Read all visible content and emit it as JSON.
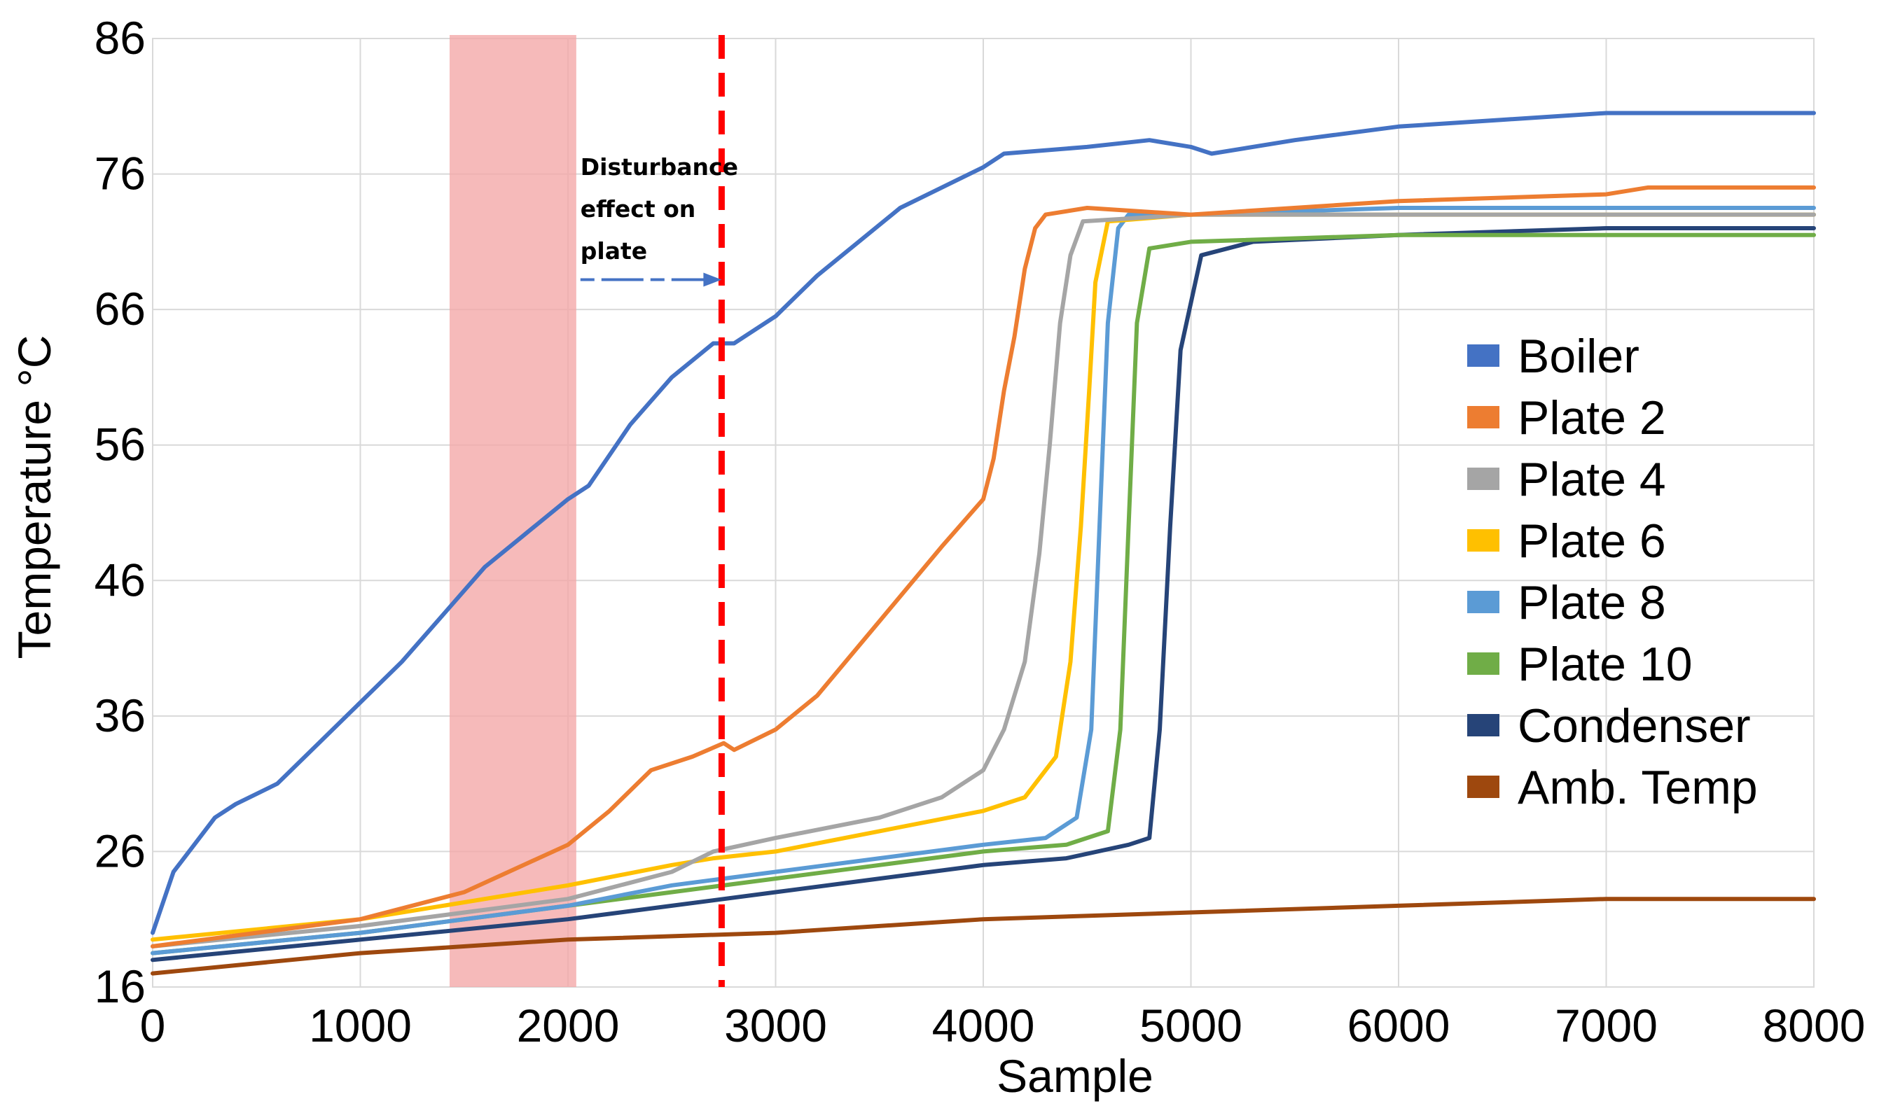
{
  "chart_data": {
    "type": "line",
    "title": "",
    "xlabel": "Sample",
    "ylabel": "Temperature °C",
    "xlim": [
      0,
      8000
    ],
    "ylim": [
      16,
      86
    ],
    "grid": true,
    "legend_position": "right",
    "x_ticks": [
      0,
      1000,
      2000,
      3000,
      4000,
      5000,
      6000,
      7000,
      8000
    ],
    "y_ticks": [
      16,
      26,
      36,
      46,
      56,
      66,
      76,
      86
    ],
    "series": [
      {
        "name": "Boiler",
        "color": "#4472C4",
        "points": [
          [
            0,
            20
          ],
          [
            100,
            24.5
          ],
          [
            200,
            26.5
          ],
          [
            300,
            28.5
          ],
          [
            400,
            29.5
          ],
          [
            600,
            31
          ],
          [
            800,
            34
          ],
          [
            1000,
            37
          ],
          [
            1200,
            40
          ],
          [
            1400,
            43.5
          ],
          [
            1600,
            47
          ],
          [
            1800,
            49.5
          ],
          [
            2000,
            52
          ],
          [
            2100,
            53
          ],
          [
            2300,
            57.5
          ],
          [
            2500,
            61
          ],
          [
            2700,
            63.5
          ],
          [
            2800,
            63.5
          ],
          [
            3000,
            65.5
          ],
          [
            3200,
            68.5
          ],
          [
            3400,
            71
          ],
          [
            3600,
            73.5
          ],
          [
            3800,
            75
          ],
          [
            4000,
            76.5
          ],
          [
            4100,
            77.5
          ],
          [
            4500,
            78
          ],
          [
            4800,
            78.5
          ],
          [
            5000,
            78
          ],
          [
            5100,
            77.5
          ],
          [
            5500,
            78.5
          ],
          [
            6000,
            79.5
          ],
          [
            6500,
            80
          ],
          [
            7000,
            80.5
          ],
          [
            7500,
            80.5
          ],
          [
            8000,
            80.5
          ]
        ]
      },
      {
        "name": "Plate 2",
        "color": "#ED7D31",
        "points": [
          [
            0,
            19
          ],
          [
            500,
            20
          ],
          [
            1000,
            21
          ],
          [
            1500,
            23
          ],
          [
            2000,
            26.5
          ],
          [
            2200,
            29
          ],
          [
            2400,
            32
          ],
          [
            2600,
            33
          ],
          [
            2750,
            34
          ],
          [
            2800,
            33.5
          ],
          [
            3000,
            35
          ],
          [
            3200,
            37.5
          ],
          [
            3500,
            43
          ],
          [
            3800,
            48.5
          ],
          [
            4000,
            52
          ],
          [
            4050,
            55
          ],
          [
            4100,
            60
          ],
          [
            4150,
            64
          ],
          [
            4200,
            69
          ],
          [
            4250,
            72
          ],
          [
            4300,
            73
          ],
          [
            4500,
            73.5
          ],
          [
            5000,
            73
          ],
          [
            6000,
            74
          ],
          [
            7000,
            74.5
          ],
          [
            7200,
            75
          ],
          [
            8000,
            75
          ]
        ]
      },
      {
        "name": "Plate 4",
        "color": "#A5A5A5",
        "points": [
          [
            0,
            19
          ],
          [
            1000,
            20.5
          ],
          [
            2000,
            22.5
          ],
          [
            2500,
            24.5
          ],
          [
            2700,
            26
          ],
          [
            3000,
            27
          ],
          [
            3500,
            28.5
          ],
          [
            3800,
            30
          ],
          [
            4000,
            32
          ],
          [
            4100,
            35
          ],
          [
            4200,
            40
          ],
          [
            4270,
            48
          ],
          [
            4320,
            56
          ],
          [
            4370,
            65
          ],
          [
            4420,
            70
          ],
          [
            4480,
            72.5
          ],
          [
            5000,
            73
          ],
          [
            6000,
            73
          ],
          [
            7000,
            73
          ],
          [
            8000,
            73
          ]
        ]
      },
      {
        "name": "Plate 6",
        "color": "#FFC000",
        "points": [
          [
            0,
            19.5
          ],
          [
            1000,
            21
          ],
          [
            2000,
            23.5
          ],
          [
            2500,
            25
          ],
          [
            2700,
            25.5
          ],
          [
            3000,
            26
          ],
          [
            3500,
            27.5
          ],
          [
            4000,
            29
          ],
          [
            4200,
            30
          ],
          [
            4350,
            33
          ],
          [
            4420,
            40
          ],
          [
            4470,
            50
          ],
          [
            4510,
            60
          ],
          [
            4540,
            68
          ],
          [
            4600,
            72.5
          ],
          [
            5000,
            73
          ],
          [
            6000,
            73
          ],
          [
            7000,
            73
          ],
          [
            8000,
            73
          ]
        ]
      },
      {
        "name": "Plate 8",
        "color": "#5B9BD5",
        "points": [
          [
            0,
            18.5
          ],
          [
            1000,
            20
          ],
          [
            2000,
            22
          ],
          [
            2500,
            23.5
          ],
          [
            3000,
            24.5
          ],
          [
            3500,
            25.5
          ],
          [
            4000,
            26.5
          ],
          [
            4300,
            27
          ],
          [
            4450,
            28.5
          ],
          [
            4520,
            35
          ],
          [
            4560,
            50
          ],
          [
            4600,
            65
          ],
          [
            4650,
            72
          ],
          [
            4700,
            73
          ],
          [
            5000,
            73
          ],
          [
            6000,
            73.5
          ],
          [
            7000,
            73.5
          ],
          [
            8000,
            73.5
          ]
        ]
      },
      {
        "name": "Plate 10",
        "color": "#70AD47",
        "points": [
          [
            0,
            18.5
          ],
          [
            1000,
            20
          ],
          [
            2000,
            22
          ],
          [
            2500,
            23
          ],
          [
            3000,
            24
          ],
          [
            3500,
            25
          ],
          [
            4000,
            26
          ],
          [
            4400,
            26.5
          ],
          [
            4600,
            27.5
          ],
          [
            4660,
            35
          ],
          [
            4700,
            50
          ],
          [
            4740,
            65
          ],
          [
            4800,
            70.5
          ],
          [
            5000,
            71
          ],
          [
            6000,
            71.5
          ],
          [
            7000,
            71.5
          ],
          [
            8000,
            71.5
          ]
        ]
      },
      {
        "name": "Condenser",
        "color": "#264478",
        "points": [
          [
            0,
            18
          ],
          [
            1000,
            19.5
          ],
          [
            2000,
            21
          ],
          [
            2500,
            22
          ],
          [
            3000,
            23
          ],
          [
            3500,
            24
          ],
          [
            4000,
            25
          ],
          [
            4400,
            25.5
          ],
          [
            4700,
            26.5
          ],
          [
            4800,
            27
          ],
          [
            4850,
            35
          ],
          [
            4900,
            50
          ],
          [
            4950,
            63
          ],
          [
            5050,
            70
          ],
          [
            5300,
            71
          ],
          [
            6000,
            71.5
          ],
          [
            7000,
            72
          ],
          [
            8000,
            72
          ]
        ]
      },
      {
        "name": "Amb. Temp",
        "color": "#9E480E",
        "points": [
          [
            0,
            17
          ],
          [
            1000,
            18.5
          ],
          [
            2000,
            19.5
          ],
          [
            3000,
            20
          ],
          [
            4000,
            21
          ],
          [
            5000,
            21.5
          ],
          [
            6000,
            22
          ],
          [
            7000,
            22.5
          ],
          [
            8000,
            22.5
          ]
        ]
      }
    ],
    "highlight_region": {
      "x_start": 1430,
      "x_end": 2040,
      "color": "#F4A6A6"
    },
    "vertical_marker": {
      "x": 2740,
      "color": "#FF0000",
      "style": "dashed"
    },
    "annotation": {
      "lines": [
        "Disturbance",
        "effect on",
        "plate"
      ],
      "arrow_from_x": 2060,
      "arrow_to_x": 2740,
      "arrow_y": 68.2,
      "text_x": 2060,
      "color": "#4472C4"
    }
  }
}
